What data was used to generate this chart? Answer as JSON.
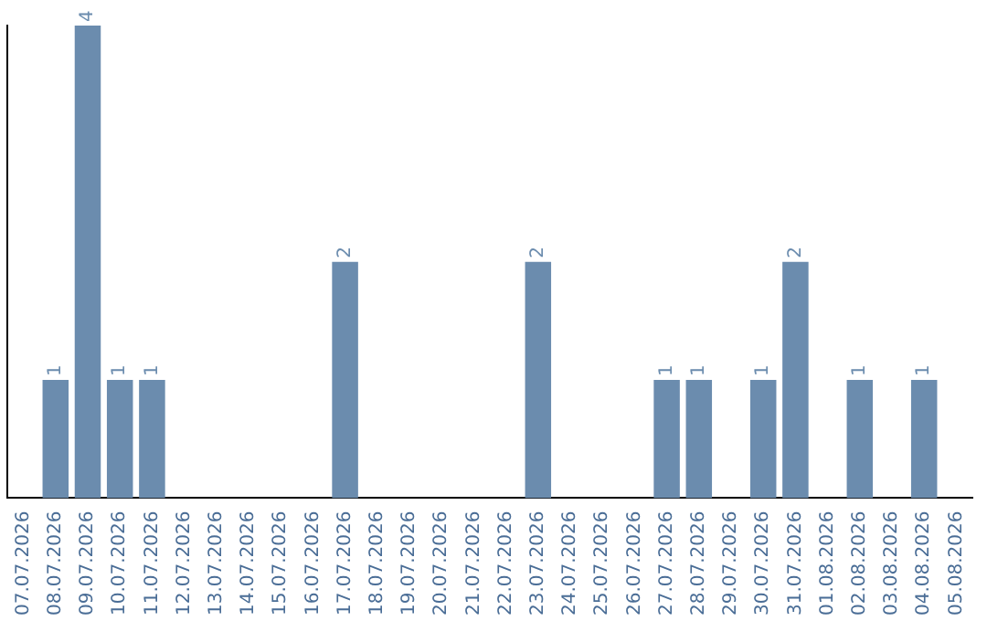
{
  "chart_data": {
    "type": "bar",
    "categories": [
      "07.07.2026",
      "08.07.2026",
      "09.07.2026",
      "10.07.2026",
      "11.07.2026",
      "12.07.2026",
      "13.07.2026",
      "14.07.2026",
      "15.07.2026",
      "16.07.2026",
      "17.07.2026",
      "18.07.2026",
      "19.07.2026",
      "20.07.2026",
      "21.07.2026",
      "22.07.2026",
      "23.07.2026",
      "24.07.2026",
      "25.07.2026",
      "26.07.2026",
      "27.07.2026",
      "28.07.2026",
      "29.07.2026",
      "30.07.2026",
      "31.07.2026",
      "01.08.2026",
      "02.08.2026",
      "03.08.2026",
      "04.08.2026",
      "05.08.2026"
    ],
    "values": [
      0,
      1,
      4,
      1,
      1,
      0,
      0,
      0,
      0,
      0,
      2,
      0,
      0,
      0,
      0,
      0,
      2,
      0,
      0,
      0,
      1,
      1,
      0,
      1,
      2,
      0,
      1,
      0,
      1,
      0
    ],
    "value_labels": [
      null,
      "1",
      "4",
      "1",
      "1",
      null,
      null,
      null,
      null,
      null,
      "2",
      null,
      null,
      null,
      null,
      null,
      "2",
      null,
      null,
      null,
      "1",
      "1",
      null,
      "1",
      "2",
      null,
      "1",
      null,
      "1",
      null
    ],
    "color": "#6b8cae",
    "grid": false,
    "legend": false,
    "tick_labels": "x"
  }
}
